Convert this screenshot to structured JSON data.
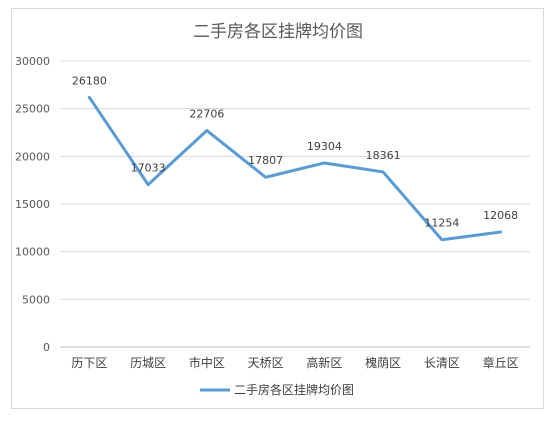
{
  "chart_data": {
    "type": "line",
    "title": "二手房各区挂牌均价图",
    "categories": [
      "历下区",
      "历城区",
      "市中区",
      "天桥区",
      "高新区",
      "槐荫区",
      "长清区",
      "章丘区"
    ],
    "series": [
      {
        "name": "二手房各区挂牌均价图",
        "values": [
          26180,
          17033,
          22706,
          17807,
          19304,
          18361,
          11254,
          12068
        ],
        "color": "#5b9bd5"
      }
    ],
    "ylim": [
      0,
      30000
    ],
    "yticks": [
      0,
      5000,
      10000,
      15000,
      20000,
      25000,
      30000
    ],
    "grid": true,
    "legend": "bottom",
    "data_labels": true
  }
}
